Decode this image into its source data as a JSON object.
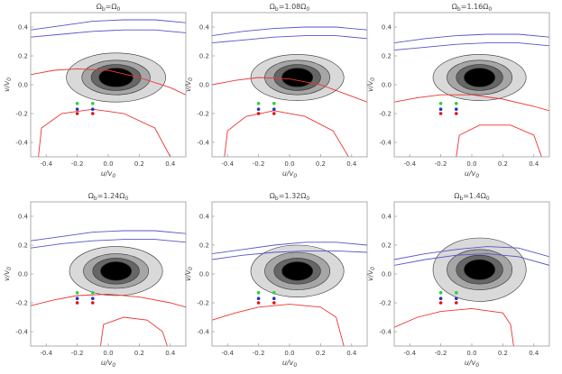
{
  "figure": {
    "description_free": true
  },
  "chart_data": [
    {
      "type": "contour",
      "title": "Ω_b=Ω_0",
      "title_text": {
        "omega": "Ω",
        "sub": "b",
        "rest": "=Ω",
        "sub2": "0"
      },
      "xlabel": "u/v0",
      "ylabel": "v/v0",
      "xlim": [
        -0.5,
        0.5
      ],
      "ylim": [
        -0.5,
        0.5
      ],
      "xticks": [
        "-0.4",
        "-0.2",
        "0.0",
        "0.2",
        "0.4"
      ],
      "yticks": [
        "-0.4",
        "-0.2",
        "0.0",
        "0.2",
        "0.4"
      ],
      "contour_center": [
        0.05,
        0.05
      ],
      "contour_levels": [
        {
          "rx": 0.32,
          "ry": 0.17,
          "fill": "#d9d9d9"
        },
        {
          "rx": 0.22,
          "ry": 0.12,
          "fill": "#a6a6a6"
        },
        {
          "rx": 0.16,
          "ry": 0.09,
          "fill": "#666666"
        },
        {
          "rx": 0.11,
          "ry": 0.065,
          "fill": "#000000"
        }
      ],
      "points": [
        {
          "u": -0.2,
          "v": -0.13,
          "color": "#2ecc40"
        },
        {
          "u": -0.1,
          "v": -0.13,
          "color": "#2ecc40"
        },
        {
          "u": -0.2,
          "v": -0.17,
          "color": "#2233cc"
        },
        {
          "u": -0.1,
          "v": -0.17,
          "color": "#2233cc"
        },
        {
          "u": -0.2,
          "v": -0.2,
          "color": "#dd1111"
        },
        {
          "u": -0.1,
          "v": -0.2,
          "color": "#dd1111"
        }
      ],
      "blue_curves": [
        [
          [
            -0.5,
            0.38
          ],
          [
            -0.3,
            0.41
          ],
          [
            -0.1,
            0.44
          ],
          [
            0.1,
            0.45
          ],
          [
            0.3,
            0.45
          ],
          [
            0.5,
            0.43
          ]
        ],
        [
          [
            -0.5,
            0.33
          ],
          [
            -0.3,
            0.35
          ],
          [
            -0.1,
            0.37
          ],
          [
            0.1,
            0.38
          ],
          [
            0.3,
            0.38
          ],
          [
            0.5,
            0.36
          ]
        ]
      ],
      "red_curves": [
        [
          [
            -0.5,
            0.07
          ],
          [
            -0.35,
            0.1
          ],
          [
            -0.2,
            0.11
          ],
          [
            0.0,
            0.1
          ],
          [
            0.2,
            0.05
          ],
          [
            0.4,
            -0.02
          ],
          [
            0.5,
            -0.07
          ]
        ],
        [
          [
            -0.45,
            -0.5
          ],
          [
            -0.43,
            -0.3
          ],
          [
            -0.3,
            -0.2
          ],
          [
            -0.1,
            -0.17
          ],
          [
            0.1,
            -0.2
          ],
          [
            0.3,
            -0.3
          ],
          [
            0.4,
            -0.5
          ]
        ]
      ]
    },
    {
      "type": "contour",
      "title_text": {
        "omega": "Ω",
        "sub": "b",
        "rest": "=1.08Ω",
        "sub2": "0"
      },
      "xlabel": "u/v0",
      "ylabel": "v/v0",
      "xlim": [
        -0.5,
        0.5
      ],
      "ylim": [
        -0.5,
        0.5
      ],
      "xticks": [
        "-0.4",
        "-0.2",
        "0.0",
        "0.2",
        "0.4"
      ],
      "yticks": [
        "-0.4",
        "-0.2",
        "0.0",
        "0.2",
        "0.4"
      ],
      "contour_center": [
        0.05,
        0.05
      ],
      "contour_levels": [
        {
          "rx": 0.3,
          "ry": 0.16,
          "fill": "#d9d9d9"
        },
        {
          "rx": 0.21,
          "ry": 0.12,
          "fill": "#a6a6a6"
        },
        {
          "rx": 0.15,
          "ry": 0.09,
          "fill": "#666666"
        },
        {
          "rx": 0.1,
          "ry": 0.065,
          "fill": "#000000"
        }
      ],
      "points": [
        {
          "u": -0.2,
          "v": -0.13,
          "color": "#2ecc40"
        },
        {
          "u": -0.1,
          "v": -0.13,
          "color": "#2ecc40"
        },
        {
          "u": -0.2,
          "v": -0.17,
          "color": "#2233cc"
        },
        {
          "u": -0.1,
          "v": -0.17,
          "color": "#2233cc"
        },
        {
          "u": -0.2,
          "v": -0.2,
          "color": "#dd1111"
        },
        {
          "u": -0.1,
          "v": -0.2,
          "color": "#dd1111"
        }
      ],
      "blue_curves": [
        [
          [
            -0.5,
            0.34
          ],
          [
            -0.3,
            0.37
          ],
          [
            -0.1,
            0.39
          ],
          [
            0.1,
            0.4
          ],
          [
            0.3,
            0.4
          ],
          [
            0.5,
            0.38
          ]
        ],
        [
          [
            -0.5,
            0.29
          ],
          [
            -0.3,
            0.31
          ],
          [
            -0.1,
            0.33
          ],
          [
            0.1,
            0.34
          ],
          [
            0.3,
            0.34
          ],
          [
            0.5,
            0.32
          ]
        ]
      ],
      "red_curves": [
        [
          [
            -0.5,
            0.0
          ],
          [
            -0.35,
            0.03
          ],
          [
            -0.2,
            0.05
          ],
          [
            0.0,
            0.04
          ],
          [
            0.2,
            0.0
          ],
          [
            0.4,
            -0.08
          ],
          [
            0.5,
            -0.12
          ]
        ],
        [
          [
            -0.42,
            -0.5
          ],
          [
            -0.4,
            -0.32
          ],
          [
            -0.28,
            -0.22
          ],
          [
            -0.1,
            -0.18
          ],
          [
            0.1,
            -0.22
          ],
          [
            0.28,
            -0.32
          ],
          [
            0.38,
            -0.5
          ]
        ]
      ]
    },
    {
      "type": "contour",
      "title_text": {
        "omega": "Ω",
        "sub": "b",
        "rest": "=1.16Ω",
        "sub2": "0"
      },
      "xlabel": "u/v0",
      "ylabel": "v/v0",
      "xlim": [
        -0.5,
        0.5
      ],
      "ylim": [
        -0.5,
        0.5
      ],
      "xticks": [
        "-0.4",
        "-0.2",
        "0.0",
        "0.2",
        "0.4"
      ],
      "yticks": [
        "-0.4",
        "-0.2",
        "0.0",
        "0.2",
        "0.4"
      ],
      "contour_center": [
        0.05,
        0.05
      ],
      "contour_levels": [
        {
          "rx": 0.3,
          "ry": 0.16,
          "fill": "#d9d9d9"
        },
        {
          "rx": 0.21,
          "ry": 0.12,
          "fill": "#a6a6a6"
        },
        {
          "rx": 0.15,
          "ry": 0.09,
          "fill": "#666666"
        },
        {
          "rx": 0.1,
          "ry": 0.065,
          "fill": "#000000"
        }
      ],
      "points": [
        {
          "u": -0.2,
          "v": -0.13,
          "color": "#2ecc40"
        },
        {
          "u": -0.1,
          "v": -0.13,
          "color": "#2ecc40"
        },
        {
          "u": -0.2,
          "v": -0.17,
          "color": "#2233cc"
        },
        {
          "u": -0.1,
          "v": -0.17,
          "color": "#2233cc"
        },
        {
          "u": -0.2,
          "v": -0.2,
          "color": "#dd1111"
        },
        {
          "u": -0.1,
          "v": -0.2,
          "color": "#dd1111"
        }
      ],
      "blue_curves": [
        [
          [
            -0.5,
            0.29
          ],
          [
            -0.3,
            0.32
          ],
          [
            -0.1,
            0.34
          ],
          [
            0.1,
            0.35
          ],
          [
            0.3,
            0.35
          ],
          [
            0.5,
            0.33
          ]
        ],
        [
          [
            -0.5,
            0.24
          ],
          [
            -0.3,
            0.26
          ],
          [
            -0.1,
            0.28
          ],
          [
            0.1,
            0.29
          ],
          [
            0.3,
            0.29
          ],
          [
            0.5,
            0.27
          ]
        ]
      ],
      "red_curves": [
        [
          [
            -0.5,
            -0.12
          ],
          [
            -0.35,
            -0.09
          ],
          [
            -0.2,
            -0.07
          ],
          [
            0.0,
            -0.07
          ],
          [
            0.2,
            -0.1
          ],
          [
            0.4,
            -0.15
          ],
          [
            0.5,
            -0.18
          ]
        ],
        [
          [
            -0.1,
            -0.5
          ],
          [
            -0.08,
            -0.35
          ],
          [
            0.05,
            -0.28
          ],
          [
            0.25,
            -0.28
          ],
          [
            0.4,
            -0.35
          ],
          [
            0.45,
            -0.5
          ]
        ]
      ]
    },
    {
      "type": "contour",
      "title_text": {
        "omega": "Ω",
        "sub": "b",
        "rest": "=1.24Ω",
        "sub2": "0"
      },
      "xlabel": "u/v0",
      "ylabel": "v/v0",
      "xlim": [
        -0.5,
        0.5
      ],
      "ylim": [
        -0.5,
        0.5
      ],
      "xticks": [
        "-0.4",
        "-0.2",
        "0.0",
        "0.2",
        "0.4"
      ],
      "yticks": [
        "-0.4",
        "-0.2",
        "0.0",
        "0.2",
        "0.4"
      ],
      "contour_center": [
        0.05,
        0.02
      ],
      "contour_levels": [
        {
          "rx": 0.3,
          "ry": 0.17,
          "fill": "#d9d9d9"
        },
        {
          "rx": 0.21,
          "ry": 0.12,
          "fill": "#a6a6a6"
        },
        {
          "rx": 0.15,
          "ry": 0.09,
          "fill": "#666666"
        },
        {
          "rx": 0.1,
          "ry": 0.065,
          "fill": "#000000"
        }
      ],
      "points": [
        {
          "u": -0.2,
          "v": -0.13,
          "color": "#2ecc40"
        },
        {
          "u": -0.1,
          "v": -0.13,
          "color": "#2ecc40"
        },
        {
          "u": -0.2,
          "v": -0.17,
          "color": "#2233cc"
        },
        {
          "u": -0.1,
          "v": -0.17,
          "color": "#2233cc"
        },
        {
          "u": -0.2,
          "v": -0.2,
          "color": "#dd1111"
        },
        {
          "u": -0.1,
          "v": -0.2,
          "color": "#dd1111"
        }
      ],
      "blue_curves": [
        [
          [
            -0.5,
            0.23
          ],
          [
            -0.3,
            0.26
          ],
          [
            -0.1,
            0.29
          ],
          [
            0.1,
            0.3
          ],
          [
            0.3,
            0.3
          ],
          [
            0.5,
            0.28
          ]
        ],
        [
          [
            -0.5,
            0.18
          ],
          [
            -0.3,
            0.21
          ],
          [
            -0.1,
            0.23
          ],
          [
            0.1,
            0.24
          ],
          [
            0.3,
            0.24
          ],
          [
            0.5,
            0.22
          ]
        ]
      ],
      "red_curves": [
        [
          [
            -0.5,
            -0.22
          ],
          [
            -0.35,
            -0.18
          ],
          [
            -0.2,
            -0.15
          ],
          [
            0.0,
            -0.14
          ],
          [
            0.2,
            -0.16
          ],
          [
            0.4,
            -0.2
          ],
          [
            0.5,
            -0.23
          ]
        ],
        [
          [
            -0.05,
            -0.5
          ],
          [
            -0.03,
            -0.35
          ],
          [
            0.1,
            -0.3
          ],
          [
            0.25,
            -0.32
          ],
          [
            0.35,
            -0.4
          ],
          [
            0.38,
            -0.5
          ]
        ]
      ]
    },
    {
      "type": "contour",
      "title_text": {
        "omega": "Ω",
        "sub": "b",
        "rest": "=1.32Ω",
        "sub2": "0"
      },
      "xlabel": "u/v0",
      "ylabel": "v/v0",
      "xlim": [
        -0.5,
        0.5
      ],
      "ylim": [
        -0.5,
        0.5
      ],
      "xticks": [
        "-0.4",
        "-0.2",
        "0.0",
        "0.2",
        "0.4"
      ],
      "yticks": [
        "-0.4",
        "-0.2",
        "0.0",
        "0.2",
        "0.4"
      ],
      "contour_center": [
        0.05,
        0.02
      ],
      "contour_levels": [
        {
          "rx": 0.3,
          "ry": 0.18,
          "fill": "#d9d9d9"
        },
        {
          "rx": 0.21,
          "ry": 0.13,
          "fill": "#a6a6a6"
        },
        {
          "rx": 0.15,
          "ry": 0.09,
          "fill": "#666666"
        },
        {
          "rx": 0.1,
          "ry": 0.065,
          "fill": "#000000"
        }
      ],
      "points": [
        {
          "u": -0.2,
          "v": -0.13,
          "color": "#2ecc40"
        },
        {
          "u": -0.1,
          "v": -0.13,
          "color": "#2ecc40"
        },
        {
          "u": -0.2,
          "v": -0.17,
          "color": "#2233cc"
        },
        {
          "u": -0.1,
          "v": -0.17,
          "color": "#2233cc"
        },
        {
          "u": -0.2,
          "v": -0.2,
          "color": "#dd1111"
        },
        {
          "u": -0.1,
          "v": -0.2,
          "color": "#dd1111"
        }
      ],
      "blue_curves": [
        [
          [
            -0.5,
            0.14
          ],
          [
            -0.3,
            0.17
          ],
          [
            -0.1,
            0.2
          ],
          [
            0.1,
            0.22
          ],
          [
            0.3,
            0.22
          ],
          [
            0.5,
            0.2
          ]
        ],
        [
          [
            -0.5,
            0.1
          ],
          [
            -0.3,
            0.13
          ],
          [
            -0.1,
            0.15
          ],
          [
            0.1,
            0.16
          ],
          [
            0.3,
            0.16
          ],
          [
            0.5,
            0.15
          ]
        ]
      ],
      "red_curves": [
        [
          [
            -0.5,
            -0.32
          ],
          [
            -0.35,
            -0.27
          ],
          [
            -0.2,
            -0.23
          ],
          [
            0.0,
            -0.21
          ],
          [
            0.2,
            -0.23
          ],
          [
            0.3,
            -0.3
          ],
          [
            0.35,
            -0.5
          ]
        ]
      ]
    },
    {
      "type": "contour",
      "title_text": {
        "omega": "Ω",
        "sub": "b",
        "rest": "=1.4Ω",
        "sub2": "0"
      },
      "xlabel": "u/v0",
      "ylabel": "v/v0",
      "xlim": [
        -0.5,
        0.5
      ],
      "ylim": [
        -0.5,
        0.5
      ],
      "xticks": [
        "-0.4",
        "-0.2",
        "0.0",
        "0.2",
        "0.4"
      ],
      "yticks": [
        "-0.4",
        "-0.2",
        "0.0",
        "0.2",
        "0.4"
      ],
      "contour_center": [
        0.05,
        0.03
      ],
      "contour_levels": [
        {
          "rx": 0.3,
          "ry": 0.22,
          "fill": "#d9d9d9"
        },
        {
          "rx": 0.21,
          "ry": 0.14,
          "fill": "#a6a6a6"
        },
        {
          "rx": 0.15,
          "ry": 0.1,
          "fill": "#666666"
        },
        {
          "rx": 0.1,
          "ry": 0.07,
          "fill": "#000000"
        }
      ],
      "points": [
        {
          "u": -0.2,
          "v": -0.13,
          "color": "#2ecc40"
        },
        {
          "u": -0.1,
          "v": -0.13,
          "color": "#2ecc40"
        },
        {
          "u": -0.2,
          "v": -0.17,
          "color": "#2233cc"
        },
        {
          "u": -0.1,
          "v": -0.17,
          "color": "#2233cc"
        },
        {
          "u": -0.2,
          "v": -0.2,
          "color": "#dd1111"
        },
        {
          "u": -0.1,
          "v": -0.2,
          "color": "#dd1111"
        }
      ],
      "blue_curves": [
        [
          [
            -0.5,
            0.1
          ],
          [
            -0.3,
            0.14
          ],
          [
            -0.1,
            0.17
          ],
          [
            0.1,
            0.19
          ],
          [
            0.3,
            0.18
          ],
          [
            0.5,
            0.12
          ]
        ],
        [
          [
            -0.5,
            0.06
          ],
          [
            -0.3,
            0.1
          ],
          [
            -0.1,
            0.13
          ],
          [
            0.1,
            0.14
          ],
          [
            0.3,
            0.12
          ],
          [
            0.5,
            0.06
          ]
        ]
      ],
      "red_curves": [
        [
          [
            -0.5,
            -0.37
          ],
          [
            -0.35,
            -0.3
          ],
          [
            -0.2,
            -0.26
          ],
          [
            0.0,
            -0.24
          ],
          [
            0.2,
            -0.27
          ],
          [
            0.25,
            -0.35
          ],
          [
            0.27,
            -0.5
          ]
        ]
      ]
    }
  ]
}
